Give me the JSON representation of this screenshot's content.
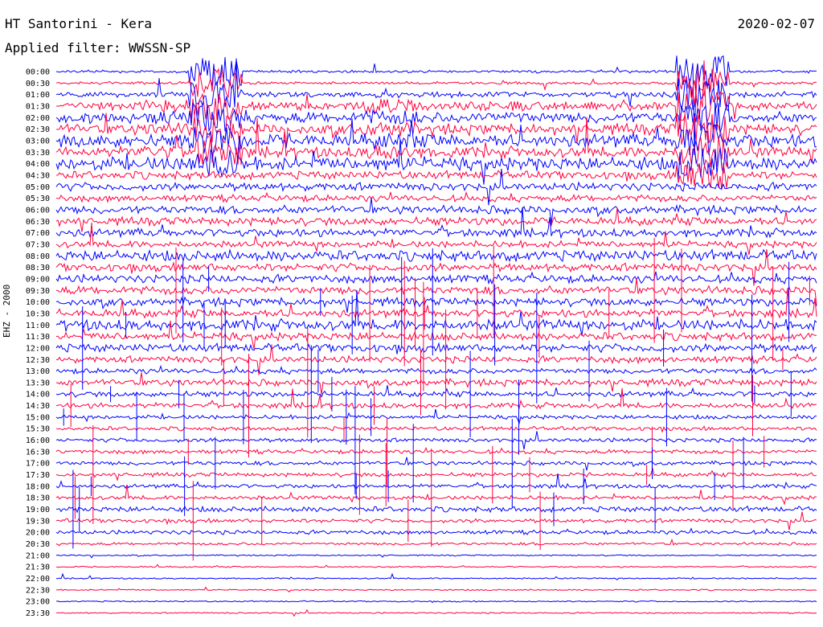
{
  "header": {
    "station": "HT Santorini - Kera",
    "filter": "Applied filter: WWSSN-SP",
    "date": "2020-02-07",
    "channel": "EHZ - 2000"
  },
  "chart_data": {
    "type": "line",
    "title": "HT Santorini - Kera",
    "subtitle": "Applied filter: WWSSN-SP",
    "ylabel": "EHZ - 2000",
    "date": "2020-02-07",
    "colors": [
      "#0000ff",
      "#ff0040"
    ],
    "tick_labels": [
      "00:00",
      "00:30",
      "01:00",
      "01:30",
      "02:00",
      "02:30",
      "03:00",
      "03:30",
      "04:00",
      "04:30",
      "05:00",
      "05:30",
      "06:00",
      "06:30",
      "07:00",
      "07:30",
      "08:00",
      "08:30",
      "09:00",
      "09:30",
      "10:00",
      "10:30",
      "11:00",
      "11:30",
      "12:00",
      "12:30",
      "13:00",
      "13:30",
      "14:00",
      "14:30",
      "15:00",
      "15:30",
      "16:00",
      "16:30",
      "17:00",
      "17:30",
      "18:00",
      "18:30",
      "19:00",
      "19:30",
      "20:00",
      "20:30",
      "21:00",
      "21:30",
      "22:00",
      "22:30",
      "23:00",
      "23:30"
    ],
    "amplitude": [
      2,
      2,
      4,
      6,
      8,
      8,
      10,
      8,
      10,
      6,
      6,
      5,
      6,
      6,
      6,
      5,
      8,
      6,
      6,
      6,
      6,
      6,
      8,
      6,
      6,
      5,
      4,
      5,
      4,
      4,
      3,
      3,
      3,
      3,
      3,
      3,
      3,
      3,
      4,
      3,
      3,
      2,
      1,
      1,
      1,
      1,
      1,
      1
    ],
    "events": [
      {
        "x": 0.15,
        "rows": [
          3,
          8
        ],
        "amp": 8,
        "color": "blue"
      },
      {
        "x": 0.21,
        "rows": [
          0,
          8
        ],
        "amp": 18,
        "color": "red"
      },
      {
        "x": 0.44,
        "rows": [
          3,
          8
        ],
        "amp": 9,
        "color": "blue"
      },
      {
        "x": 0.85,
        "rows": [
          0,
          9
        ],
        "amp": 20,
        "color": "mixed"
      },
      {
        "x": 0.59,
        "rows": [
          3,
          4
        ],
        "amp": 6,
        "color": "blue"
      }
    ]
  }
}
